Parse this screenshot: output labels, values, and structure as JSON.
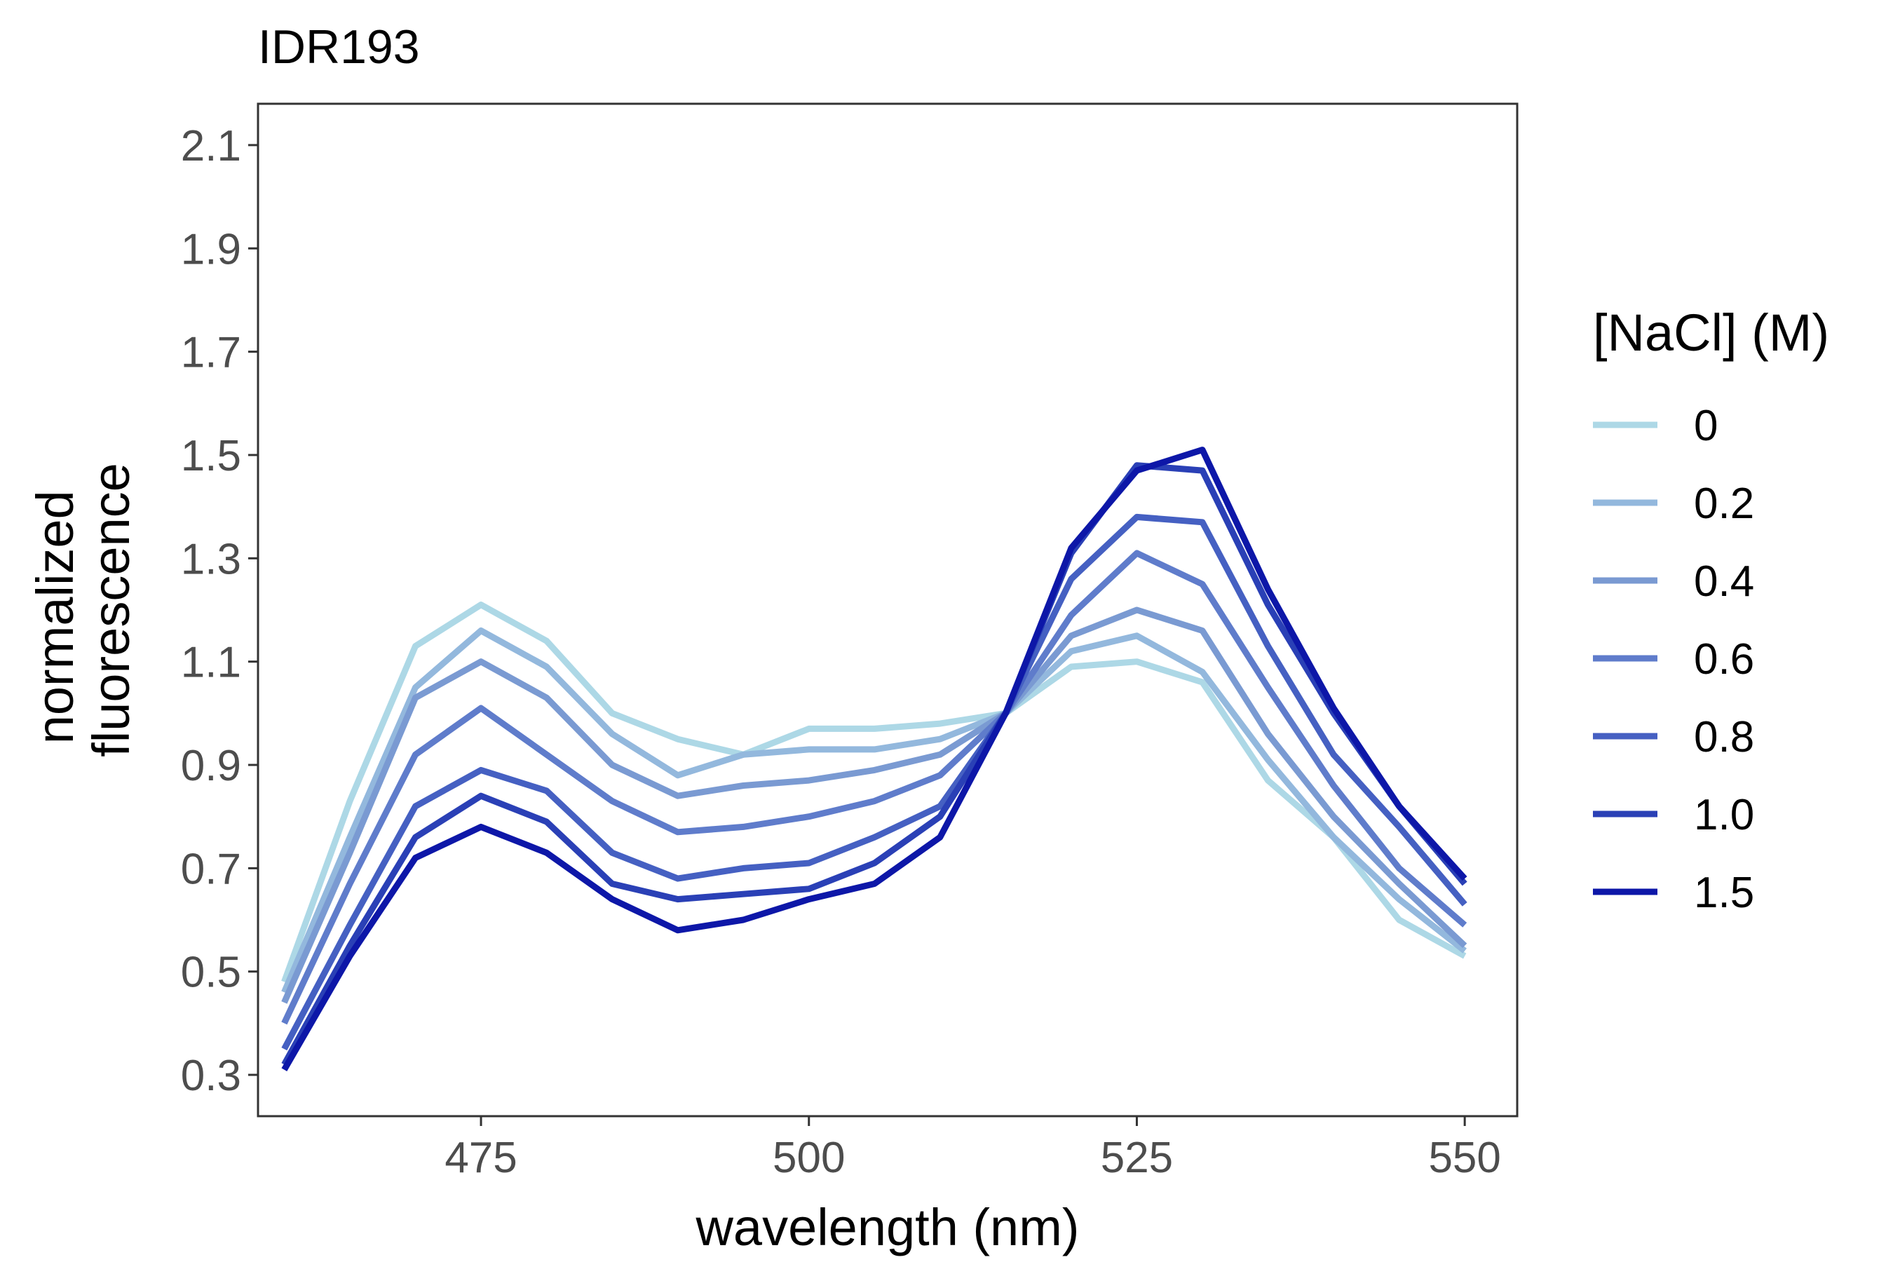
{
  "chart_data": {
    "type": "line",
    "title": "IDR193",
    "xlabel": "wavelength (nm)",
    "ylabel": [
      "normalized",
      "fluorescence"
    ],
    "xlim": [
      458,
      554
    ],
    "ylim": [
      0.22,
      2.18
    ],
    "xticks": [
      475,
      500,
      525,
      550
    ],
    "yticks": [
      0.3,
      0.5,
      0.7,
      0.9,
      1.1,
      1.3,
      1.5,
      1.7,
      1.9,
      2.1
    ],
    "ytick_labels": [
      "0.3",
      "0.5",
      "0.7",
      "0.9",
      "1.1",
      "1.3",
      "1.5",
      "1.7",
      "1.9",
      "2.1"
    ],
    "grid": false,
    "legend": {
      "title": "[NaCl] (M)",
      "position": "right"
    },
    "x": [
      460,
      465,
      470,
      475,
      480,
      485,
      490,
      495,
      500,
      505,
      510,
      515,
      520,
      525,
      530,
      535,
      540,
      545,
      550
    ],
    "series": [
      {
        "name": "0",
        "color": "#add8e6",
        "values": [
          0.48,
          0.83,
          1.13,
          1.21,
          1.14,
          1.0,
          0.95,
          0.92,
          0.97,
          0.97,
          0.98,
          1.0,
          1.09,
          1.1,
          1.06,
          0.87,
          0.76,
          0.6,
          0.53
        ]
      },
      {
        "name": "0.2",
        "color": "#93b8dd",
        "values": [
          0.46,
          0.76,
          1.05,
          1.16,
          1.09,
          0.96,
          0.88,
          0.92,
          0.93,
          0.93,
          0.95,
          1.0,
          1.12,
          1.15,
          1.08,
          0.91,
          0.76,
          0.64,
          0.54
        ]
      },
      {
        "name": "0.4",
        "color": "#7a9ad2",
        "values": [
          0.44,
          0.73,
          1.03,
          1.1,
          1.03,
          0.9,
          0.84,
          0.86,
          0.87,
          0.89,
          0.92,
          1.0,
          1.15,
          1.2,
          1.16,
          0.96,
          0.8,
          0.67,
          0.55
        ]
      },
      {
        "name": "0.6",
        "color": "#5f7ccb",
        "values": [
          0.4,
          0.67,
          0.92,
          1.01,
          0.92,
          0.83,
          0.77,
          0.78,
          0.8,
          0.83,
          0.88,
          1.0,
          1.19,
          1.31,
          1.25,
          1.05,
          0.86,
          0.7,
          0.59
        ]
      },
      {
        "name": "0.8",
        "color": "#4560c2",
        "values": [
          0.35,
          0.59,
          0.82,
          0.89,
          0.85,
          0.73,
          0.68,
          0.7,
          0.71,
          0.76,
          0.82,
          1.0,
          1.26,
          1.38,
          1.37,
          1.13,
          0.92,
          0.78,
          0.63
        ]
      },
      {
        "name": "1.0",
        "color": "#2a40b6",
        "values": [
          0.32,
          0.55,
          0.76,
          0.84,
          0.79,
          0.67,
          0.64,
          0.65,
          0.66,
          0.71,
          0.8,
          1.0,
          1.31,
          1.48,
          1.47,
          1.21,
          1.0,
          0.82,
          0.67
        ]
      },
      {
        "name": "1.5",
        "color": "#0d17a8",
        "values": [
          0.31,
          0.53,
          0.72,
          0.78,
          0.73,
          0.64,
          0.58,
          0.6,
          0.64,
          0.67,
          0.76,
          1.0,
          1.32,
          1.47,
          1.51,
          1.24,
          1.01,
          0.82,
          0.68
        ]
      }
    ]
  }
}
